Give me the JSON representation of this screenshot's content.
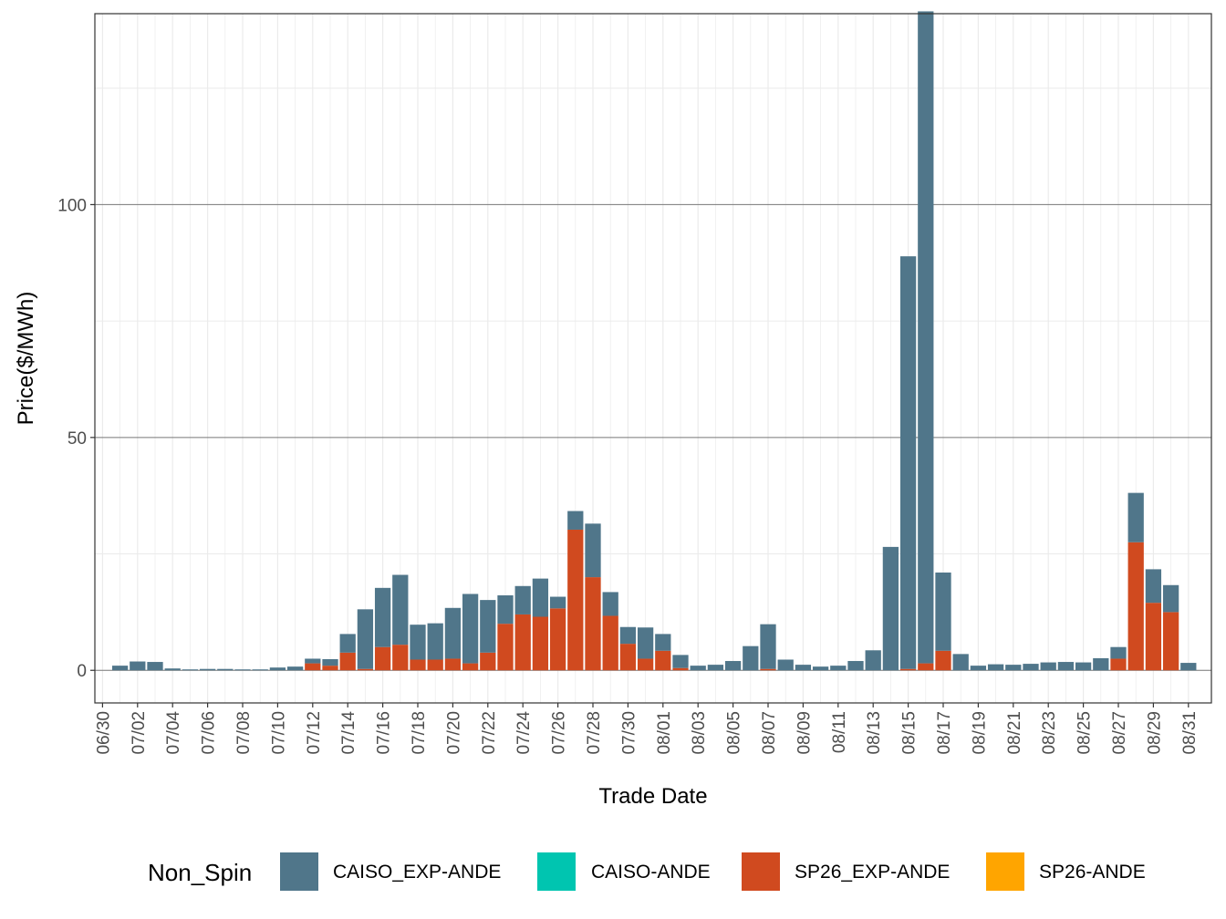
{
  "chart_data": {
    "type": "bar",
    "stacked": true,
    "title": "",
    "xlabel": "Trade Date",
    "ylabel": "Price($/MWh)",
    "ylim": [
      -7,
      141
    ],
    "yticks": [
      0,
      50,
      100
    ],
    "ytick_labels": [
      "0",
      "50",
      "100"
    ],
    "legend": {
      "title": "Non_Spin",
      "position": "bottom"
    },
    "x_tick_labels": [
      "06/30",
      "07/02",
      "07/04",
      "07/06",
      "07/08",
      "07/10",
      "07/12",
      "07/14",
      "07/16",
      "07/18",
      "07/20",
      "07/22",
      "07/24",
      "07/26",
      "07/28",
      "07/30",
      "08/01",
      "08/03",
      "08/05",
      "08/07",
      "08/09",
      "08/11",
      "08/13",
      "08/15",
      "08/17",
      "08/19",
      "08/21",
      "08/23",
      "08/25",
      "08/27",
      "08/29",
      "08/31"
    ],
    "categories": [
      "07/01",
      "07/02",
      "07/03",
      "07/04",
      "07/05",
      "07/06",
      "07/07",
      "07/08",
      "07/09",
      "07/10",
      "07/11",
      "07/12",
      "07/13",
      "07/14",
      "07/15",
      "07/16",
      "07/17",
      "07/18",
      "07/19",
      "07/20",
      "07/21",
      "07/22",
      "07/23",
      "07/24",
      "07/25",
      "07/26",
      "07/27",
      "07/28",
      "07/29",
      "07/30",
      "07/31",
      "08/01",
      "08/02",
      "08/03",
      "08/04",
      "08/05",
      "08/06",
      "08/07",
      "08/08",
      "08/09",
      "08/10",
      "08/11",
      "08/12",
      "08/13",
      "08/14",
      "08/15",
      "08/16",
      "08/17",
      "08/18",
      "08/19",
      "08/20",
      "08/21",
      "08/22",
      "08/23",
      "08/24",
      "08/25",
      "08/26",
      "08/27",
      "08/28",
      "08/29",
      "08/30",
      "08/31"
    ],
    "series": [
      {
        "name": "SP26_EXP-ANDE",
        "color": "#D04A1F",
        "values": [
          0,
          0,
          0,
          0,
          0,
          0,
          0,
          0,
          0,
          0,
          0,
          1.5,
          1.0,
          3.8,
          0.3,
          5.0,
          5.5,
          2.3,
          2.3,
          2.5,
          1.5,
          3.8,
          10.0,
          12.0,
          11.5,
          13.3,
          30.2,
          20.0,
          11.7,
          5.7,
          2.5,
          4.2,
          0.5,
          0,
          0,
          0,
          0,
          0.3,
          0,
          0,
          0,
          0,
          0,
          0,
          0,
          0.3,
          1.5,
          4.2,
          0,
          0,
          0,
          0,
          0,
          0,
          0,
          0,
          0,
          2.5,
          27.5,
          14.5,
          12.5,
          0
        ]
      },
      {
        "name": "SP26-ANDE",
        "color": "#FFA500",
        "values": [
          0,
          0,
          0,
          0,
          0,
          0,
          0,
          0,
          0,
          0,
          0,
          0,
          0,
          0,
          0,
          0,
          0,
          0,
          0,
          0,
          0,
          0,
          0,
          0,
          0,
          0,
          0,
          0,
          0,
          0,
          0,
          0,
          0,
          0,
          0,
          0,
          0,
          0,
          0,
          0,
          0,
          0,
          0,
          0,
          0,
          0,
          0,
          0,
          0,
          0,
          0,
          0,
          0,
          0,
          0,
          0,
          0,
          0,
          0,
          0,
          0,
          0
        ]
      },
      {
        "name": "CAISO_EXP-ANDE",
        "color": "#50768A",
        "values": [
          1.0,
          1.9,
          1.8,
          0.4,
          0.2,
          0.3,
          0.3,
          0.2,
          0.2,
          0.6,
          0.8,
          1.0,
          1.4,
          4.0,
          12.8,
          12.7,
          15.0,
          7.5,
          7.8,
          10.9,
          14.9,
          11.3,
          6.1,
          6.1,
          8.2,
          2.5,
          4.0,
          11.5,
          5.1,
          3.6,
          6.7,
          3.6,
          2.8,
          1.0,
          1.2,
          2.0,
          5.2,
          9.6,
          2.3,
          1.2,
          0.8,
          1.0,
          2.0,
          4.3,
          26.5,
          88.6,
          140.0,
          16.8,
          3.5,
          1.0,
          1.3,
          1.2,
          1.4,
          1.7,
          1.8,
          1.7,
          2.6,
          2.5,
          10.6,
          7.2,
          5.8,
          1.6
        ]
      },
      {
        "name": "CAISO-ANDE",
        "color": "#00C5B0",
        "values": [
          0,
          0,
          0,
          0,
          0,
          0,
          0,
          0,
          0,
          0,
          0,
          0,
          0,
          0,
          0,
          0,
          0,
          0,
          0,
          0,
          0,
          0,
          0,
          0,
          0,
          0,
          0,
          0,
          0,
          0,
          0,
          0,
          0,
          0,
          0,
          0,
          0,
          0,
          0,
          0,
          0,
          0,
          0,
          0,
          0,
          0,
          0,
          0,
          0,
          0,
          0,
          0,
          0,
          0,
          0,
          0,
          0,
          0,
          0,
          0,
          0,
          0
        ]
      }
    ],
    "legend_entries": [
      {
        "label": "CAISO_EXP-ANDE",
        "color": "#50768A"
      },
      {
        "label": "CAISO-ANDE",
        "color": "#00C5B0"
      },
      {
        "label": "SP26_EXP-ANDE",
        "color": "#D04A1F"
      },
      {
        "label": "SP26-ANDE",
        "color": "#FFA500"
      }
    ]
  }
}
